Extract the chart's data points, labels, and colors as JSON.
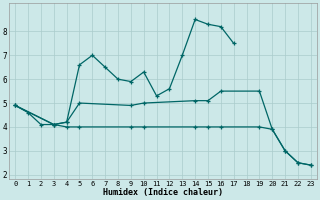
{
  "xlabel": "Humidex (Indice chaleur)",
  "background_color": "#cce8e8",
  "grid_color": "#aacccc",
  "line_color": "#006666",
  "xlim": [
    -0.5,
    23.5
  ],
  "ylim": [
    1.8,
    9.2
  ],
  "yticks": [
    2,
    3,
    4,
    5,
    6,
    7,
    8
  ],
  "xticks": [
    0,
    1,
    2,
    3,
    4,
    5,
    6,
    7,
    8,
    9,
    10,
    11,
    12,
    13,
    14,
    15,
    16,
    17,
    18,
    19,
    20,
    21,
    22,
    23
  ],
  "line_main": {
    "x": [
      0,
      1,
      2,
      3,
      4,
      5,
      6,
      7,
      8,
      9,
      10,
      11,
      12,
      13,
      14,
      15,
      16,
      17
    ],
    "y": [
      4.9,
      4.6,
      4.1,
      4.1,
      4.2,
      6.6,
      7.0,
      6.5,
      6.0,
      5.9,
      6.3,
      5.3,
      5.6,
      7.0,
      8.5,
      8.3,
      8.2,
      7.5
    ]
  },
  "line_upper": {
    "x": [
      0,
      3,
      4,
      5,
      9,
      10,
      14,
      15,
      16,
      19,
      20,
      21,
      22,
      23
    ],
    "y": [
      4.9,
      4.1,
      4.2,
      5.0,
      4.9,
      5.0,
      5.1,
      5.1,
      5.5,
      5.5,
      3.9,
      3.0,
      2.5,
      2.4
    ]
  },
  "line_lower": {
    "x": [
      0,
      3,
      4,
      5,
      9,
      10,
      14,
      15,
      16,
      19,
      20,
      21,
      22,
      23
    ],
    "y": [
      4.9,
      4.1,
      4.0,
      4.0,
      4.0,
      4.0,
      4.0,
      4.0,
      4.0,
      4.0,
      3.9,
      3.0,
      2.5,
      2.4
    ]
  }
}
